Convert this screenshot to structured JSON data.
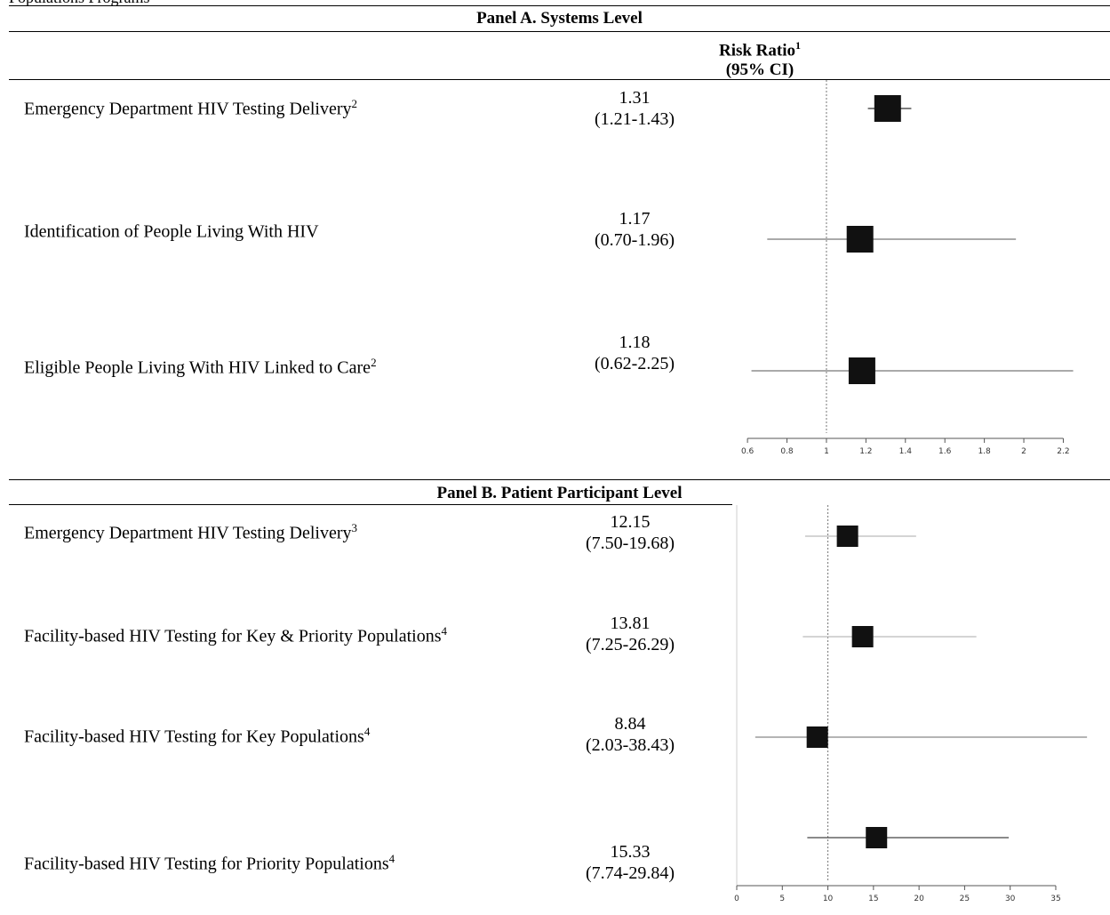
{
  "header_fragment": "Populations Programs",
  "column_header": {
    "line1": "Risk Ratio",
    "sup": "1",
    "line2": "(95% CI)"
  },
  "panel_a": {
    "title": "Panel A. Systems Level",
    "rows": [
      {
        "label": "Emergency Department HIV Testing Delivery",
        "sup": "2",
        "estimate": "1.31",
        "ci": "(1.21-1.43)"
      },
      {
        "label": "Identification of People Living With HIV",
        "sup": "",
        "estimate": "1.17",
        "ci": "(0.70-1.96)"
      },
      {
        "label": "Eligible People Living With HIV Linked to Care",
        "sup": "2",
        "estimate": "1.18",
        "ci": "(0.62-2.25)"
      }
    ]
  },
  "panel_b": {
    "title": "Panel B. Patient Participant Level",
    "rows": [
      {
        "label": "Emergency Department HIV Testing Delivery",
        "sup": "3",
        "estimate": "12.15",
        "ci": "(7.50-19.68)"
      },
      {
        "label": "Facility-based HIV Testing for Key & Priority Populations",
        "sup": "4",
        "estimate": "13.81",
        "ci": "(7.25-26.29)"
      },
      {
        "label": "Facility-based HIV Testing for Key Populations",
        "sup": "4",
        "estimate": "8.84",
        "ci": "(2.03-38.43)"
      },
      {
        "label": "Facility-based HIV Testing for Priority Populations",
        "sup": "4",
        "estimate": "15.33",
        "ci": "(7.74-29.84)"
      }
    ]
  },
  "chart_data": [
    {
      "type": "scatter",
      "title": "Panel A. Systems Level",
      "xlim": [
        0.55,
        2.27
      ],
      "ticks": [
        0.6,
        0.8,
        1,
        1.2,
        1.4,
        1.6,
        1.8,
        2,
        2.2
      ],
      "tick_labels": [
        "0.6",
        "0.8",
        "1",
        "1.2",
        "1.4",
        "1.6",
        "1.8",
        "2",
        "2.2"
      ],
      "reference_line": 1,
      "points": [
        {
          "estimate": 1.31,
          "lower": 1.21,
          "upper": 1.43
        },
        {
          "estimate": 1.17,
          "lower": 0.7,
          "upper": 1.96
        },
        {
          "estimate": 1.18,
          "lower": 0.62,
          "upper": 2.25
        }
      ]
    },
    {
      "type": "scatter",
      "title": "Panel B. Patient Participant Level",
      "xlim": [
        0,
        39
      ],
      "ticks": [
        0,
        5,
        10,
        15,
        20,
        25,
        30,
        35
      ],
      "tick_labels": [
        "0",
        "5",
        "10",
        "15",
        "20",
        "25",
        "30",
        "35"
      ],
      "reference_line": 10,
      "points": [
        {
          "estimate": 12.15,
          "lower": 7.5,
          "upper": 19.68
        },
        {
          "estimate": 13.81,
          "lower": 7.25,
          "upper": 26.29
        },
        {
          "estimate": 8.84,
          "lower": 2.03,
          "upper": 38.43
        },
        {
          "estimate": 15.33,
          "lower": 7.74,
          "upper": 29.84
        }
      ]
    }
  ]
}
